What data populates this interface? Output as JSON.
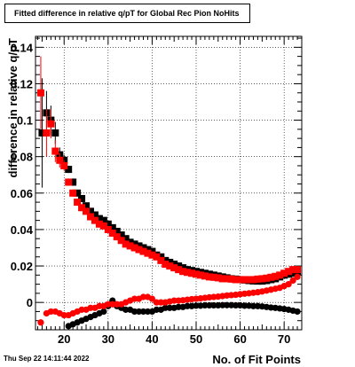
{
  "chart_data": {
    "type": "scatter",
    "title": "Fitted difference in relative q/pT for Global Rec Pion NoHits",
    "xlabel": "No. of Fit Points",
    "ylabel": "difference in relative q/pT",
    "xlim": [
      13.5,
      74
    ],
    "ylim": [
      -0.015,
      0.146
    ],
    "xticks": [
      20,
      30,
      40,
      50,
      60,
      70
    ],
    "yticks": [
      "0",
      "0.02",
      "0.04",
      "0.06",
      "0.08",
      "0.1",
      "0.12",
      "0.14"
    ],
    "ytick_values": [
      0,
      0.02,
      0.04,
      0.06,
      0.08,
      0.1,
      0.12,
      0.14
    ],
    "grid": true,
    "series": [
      {
        "color": "#000000",
        "marker": "square",
        "x": [
          15,
          16,
          17,
          18,
          19,
          20,
          21,
          22,
          23,
          24,
          25,
          26,
          27,
          28,
          29,
          30,
          31,
          32,
          33,
          34,
          35,
          36,
          37,
          38,
          39,
          40,
          41,
          42,
          43,
          44,
          45,
          46,
          47,
          48,
          49,
          50,
          51,
          52,
          53,
          54,
          55,
          56,
          57,
          58,
          59,
          60,
          61,
          62,
          63,
          64,
          65,
          66,
          67,
          68,
          69,
          70,
          71,
          72,
          73
        ],
        "y": [
          0.093,
          0.104,
          0.1,
          0.093,
          0.081,
          0.078,
          0.073,
          0.066,
          0.06,
          0.057,
          0.053,
          0.05,
          0.048,
          0.046,
          0.045,
          0.043,
          0.041,
          0.039,
          0.037,
          0.035,
          0.033,
          0.032,
          0.031,
          0.03,
          0.029,
          0.028,
          0.026,
          0.025,
          0.023,
          0.022,
          0.021,
          0.02,
          0.019,
          0.018,
          0.0175,
          0.017,
          0.0165,
          0.016,
          0.0155,
          0.015,
          0.0145,
          0.014,
          0.0135,
          0.013,
          0.0128,
          0.0125,
          0.0123,
          0.012,
          0.0118,
          0.0117,
          0.0117,
          0.012,
          0.0125,
          0.013,
          0.014,
          0.015,
          0.0155,
          0.016,
          0.017
        ],
        "yerr": [
          0.03,
          0.012,
          0.008,
          0.006,
          0.004,
          0.003,
          0.002,
          0.002,
          0.0015,
          0.0015,
          0.001,
          0.001,
          0.001,
          0.001,
          0.001,
          0.001,
          0.001,
          0.001,
          0.001,
          0.001,
          0.001,
          0.001,
          0.001,
          0.001,
          0.001,
          0.001,
          0.001,
          0.001,
          0.001,
          0.001,
          0.001,
          0.001,
          0.001,
          0.001,
          0.001,
          0.001,
          0.001,
          0.001,
          0.001,
          0.001,
          0.001,
          0.001,
          0.001,
          0.001,
          0.001,
          0.001,
          0.001,
          0.001,
          0.001,
          0.001,
          0.001,
          0.001,
          0.001,
          0.001,
          0.001,
          0.001,
          0.001,
          0.001,
          0.001
        ]
      },
      {
        "color": "#000000",
        "marker": "circle",
        "x": [
          21,
          22,
          23,
          24,
          25,
          26,
          27,
          28,
          29,
          30,
          31,
          32,
          33,
          34,
          35,
          36,
          37,
          38,
          39,
          40,
          41,
          42,
          43,
          44,
          45,
          46,
          47,
          48,
          49,
          50,
          51,
          52,
          53,
          54,
          55,
          56,
          57,
          58,
          59,
          60,
          61,
          62,
          63,
          64,
          65,
          66,
          67,
          68,
          69,
          70,
          71,
          72,
          73
        ],
        "y": [
          -0.013,
          -0.012,
          -0.011,
          -0.01,
          -0.009,
          -0.008,
          -0.007,
          -0.006,
          -0.005,
          -0.002,
          0.001,
          -0.002,
          -0.003,
          -0.004,
          -0.004,
          -0.005,
          -0.005,
          -0.005,
          -0.005,
          -0.005,
          -0.004,
          -0.004,
          -0.003,
          -0.003,
          -0.003,
          -0.0025,
          -0.0025,
          -0.002,
          -0.002,
          -0.0018,
          -0.0018,
          -0.0016,
          -0.0016,
          -0.0016,
          -0.0016,
          -0.0015,
          -0.0015,
          -0.0015,
          -0.0016,
          -0.0016,
          -0.0018,
          -0.0018,
          -0.002,
          -0.002,
          -0.0022,
          -0.0025,
          -0.0028,
          -0.003,
          -0.0033,
          -0.0036,
          -0.004,
          -0.0045,
          -0.005
        ]
      },
      {
        "color": "#ff0000",
        "marker": "square",
        "x": [
          14.7,
          16,
          17,
          18,
          19,
          20,
          21,
          22,
          23,
          24,
          25,
          26,
          27,
          28,
          29,
          30,
          31,
          32,
          33,
          34,
          35,
          36,
          37,
          38,
          39,
          40,
          41,
          42,
          43,
          44,
          45,
          46,
          47,
          48,
          49,
          50,
          51,
          52,
          53,
          54,
          55,
          56,
          57,
          58,
          59,
          60,
          61,
          62,
          63,
          64,
          65,
          66,
          67,
          68,
          69,
          70,
          71,
          72,
          73
        ],
        "y": [
          0.115,
          0.093,
          0.098,
          0.083,
          0.078,
          0.075,
          0.066,
          0.06,
          0.055,
          0.052,
          0.05,
          0.047,
          0.045,
          0.043,
          0.042,
          0.04,
          0.038,
          0.036,
          0.034,
          0.032,
          0.031,
          0.03,
          0.029,
          0.028,
          0.027,
          0.026,
          0.025,
          0.023,
          0.021,
          0.02,
          0.019,
          0.018,
          0.017,
          0.0165,
          0.016,
          0.0155,
          0.015,
          0.0145,
          0.014,
          0.0138,
          0.0135,
          0.013,
          0.013,
          0.0128,
          0.0125,
          0.0125,
          0.0125,
          0.0125,
          0.0125,
          0.0128,
          0.013,
          0.0133,
          0.0138,
          0.0143,
          0.015,
          0.016,
          0.017,
          0.018,
          0.018
        ],
        "yerr": [
          0.02,
          0.013,
          0.008,
          0.006,
          0.004,
          0.003,
          0.002,
          0.002,
          0.0015,
          0.0015,
          0.001,
          0.001,
          0.001,
          0.001,
          0.001,
          0.001,
          0.001,
          0.001,
          0.001,
          0.001,
          0.001,
          0.001,
          0.001,
          0.001,
          0.001,
          0.001,
          0.001,
          0.001,
          0.001,
          0.001,
          0.001,
          0.001,
          0.001,
          0.001,
          0.001,
          0.001,
          0.001,
          0.001,
          0.001,
          0.001,
          0.001,
          0.001,
          0.001,
          0.001,
          0.001,
          0.001,
          0.001,
          0.001,
          0.001,
          0.001,
          0.001,
          0.001,
          0.001,
          0.001,
          0.001,
          0.001,
          0.001,
          0.001,
          0.001
        ]
      },
      {
        "color": "#ff0000",
        "marker": "circle",
        "x": [
          14.7,
          16,
          17,
          18,
          19,
          20,
          21,
          22,
          23,
          24,
          25,
          26,
          27,
          28,
          29,
          30,
          31,
          32,
          33,
          34,
          35,
          36,
          37,
          38,
          39,
          40,
          41,
          42,
          43,
          44,
          45,
          46,
          47,
          48,
          49,
          50,
          51,
          52,
          53,
          54,
          55,
          56,
          57,
          58,
          59,
          60,
          61,
          62,
          63,
          64,
          65,
          66,
          67,
          68,
          69,
          70,
          71,
          72,
          73
        ],
        "y": [
          -0.011,
          -0.006,
          -0.005,
          -0.005,
          -0.006,
          -0.007,
          -0.007,
          -0.006,
          -0.005,
          -0.004,
          -0.004,
          -0.003,
          -0.003,
          -0.002,
          -0.002,
          -0.001,
          -0.001,
          -0.001,
          -0.001,
          0.0,
          0.001,
          0.002,
          0.002,
          0.003,
          0.003,
          0.002,
          0.0,
          0.0,
          0.0,
          0.0005,
          0.001,
          0.001,
          0.0012,
          0.0015,
          0.0018,
          0.002,
          0.0022,
          0.0025,
          0.0028,
          0.003,
          0.0032,
          0.0035,
          0.0038,
          0.004,
          0.0042,
          0.0045,
          0.0048,
          0.005,
          0.0053,
          0.0056,
          0.006,
          0.0065,
          0.007,
          0.0075,
          0.008,
          0.009,
          0.01,
          0.012,
          0.014
        ]
      }
    ]
  },
  "footer": {
    "datestamp": "Thu Sep 22 14:11:44 2022"
  }
}
